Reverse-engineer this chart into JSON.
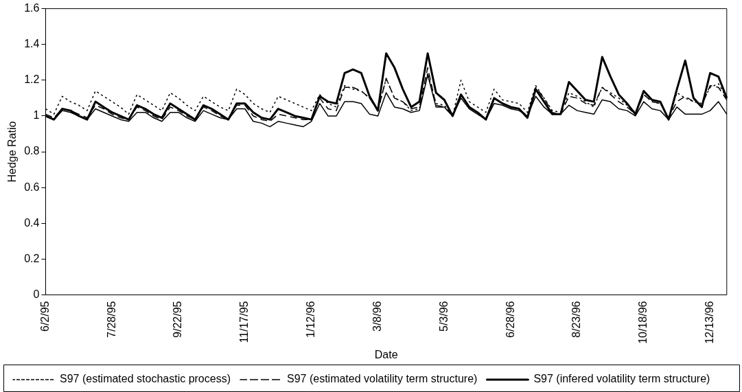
{
  "chart_data": {
    "type": "line",
    "xlabel": "Date",
    "ylabel": "Hedge Ratio",
    "ylim": [
      0,
      1.6
    ],
    "yticks": [
      0,
      0.2,
      0.4,
      0.6,
      0.8,
      1,
      1.2,
      1.4,
      1.6
    ],
    "grid": false,
    "legend": "bottom",
    "marker": "none",
    "categories": [
      "6/2/95",
      null,
      null,
      null,
      null,
      null,
      null,
      null,
      "7/28/95",
      null,
      null,
      null,
      null,
      null,
      null,
      null,
      "9/22/95",
      null,
      null,
      null,
      null,
      null,
      null,
      null,
      "11/17/95",
      null,
      null,
      null,
      null,
      null,
      null,
      null,
      "1/12/96",
      null,
      null,
      null,
      null,
      null,
      null,
      null,
      "3/8/96",
      null,
      null,
      null,
      null,
      null,
      null,
      null,
      "5/3/96",
      null,
      null,
      null,
      null,
      null,
      null,
      null,
      "6/28/96",
      null,
      null,
      null,
      null,
      null,
      null,
      null,
      "8/23/96",
      null,
      null,
      null,
      null,
      null,
      null,
      null,
      "10/18/96",
      null,
      null,
      null,
      null,
      null,
      null,
      null,
      "12/13/96",
      null,
      null
    ],
    "series": [
      {
        "name": "S97 (estimated stochastic process)",
        "color": "#000000",
        "line_style": "dotted",
        "values": [
          1.04,
          1.01,
          1.11,
          1.08,
          1.06,
          1.03,
          1.14,
          1.11,
          1.08,
          1.05,
          1.01,
          1.12,
          1.09,
          1.06,
          1.03,
          1.13,
          1.1,
          1.06,
          1.03,
          1.11,
          1.08,
          1.05,
          1.03,
          1.15,
          1.12,
          1.07,
          1.04,
          1.02,
          1.11,
          1.09,
          1.07,
          1.05,
          1.03,
          1.12,
          1.07,
          1.05,
          1.17,
          1.15,
          1.14,
          1.1,
          1.03,
          1.21,
          1.1,
          1.08,
          1.03,
          1.04,
          1.24,
          1.07,
          1.06,
          1.0,
          1.2,
          1.08,
          1.05,
          1.02,
          1.15,
          1.09,
          1.08,
          1.07,
          1.02,
          1.17,
          1.1,
          1.03,
          1.02,
          1.13,
          1.11,
          1.08,
          1.05,
          1.16,
          1.13,
          1.1,
          1.06,
          1.02,
          1.12,
          1.08,
          1.07,
          0.99,
          1.13,
          1.1,
          1.08,
          1.07,
          1.16,
          1.18,
          1.1
        ]
      },
      {
        "name": "S97 (estimated volatility term structure)",
        "color": "#000000",
        "line_style": "dashed",
        "values": [
          1.01,
          0.99,
          1.04,
          1.03,
          1.01,
          0.99,
          1.06,
          1.04,
          1.01,
          0.99,
          0.98,
          1.05,
          1.03,
          1.0,
          0.98,
          1.05,
          1.03,
          1.0,
          0.98,
          1.05,
          1.03,
          1.0,
          0.98,
          1.06,
          1.06,
          1.0,
          0.98,
          0.97,
          1.01,
          1.0,
          0.99,
          0.98,
          0.98,
          1.1,
          1.04,
          1.03,
          1.16,
          1.16,
          1.14,
          1.1,
          1.03,
          1.21,
          1.1,
          1.08,
          1.04,
          1.05,
          1.27,
          1.06,
          1.05,
          1.0,
          1.12,
          1.05,
          1.02,
          0.98,
          1.1,
          1.07,
          1.05,
          1.04,
          1.0,
          1.16,
          1.1,
          1.02,
          1.01,
          1.11,
          1.1,
          1.07,
          1.06,
          1.16,
          1.12,
          1.08,
          1.05,
          1.01,
          1.12,
          1.08,
          1.07,
          0.99,
          1.08,
          1.11,
          1.08,
          1.06,
          1.17,
          1.16,
          1.09
        ]
      },
      {
        "name": "S97 (infered volatility term structure)",
        "color": "#000000",
        "line_style": "solid",
        "values": [
          1.0,
          0.98,
          1.04,
          1.03,
          1.0,
          0.98,
          1.08,
          1.05,
          1.02,
          1.0,
          0.98,
          1.06,
          1.04,
          1.01,
          0.99,
          1.07,
          1.04,
          1.01,
          0.98,
          1.06,
          1.04,
          1.01,
          0.98,
          1.07,
          1.07,
          1.02,
          0.99,
          0.98,
          1.04,
          1.02,
          1.0,
          0.99,
          0.98,
          1.11,
          1.08,
          1.07,
          1.24,
          1.26,
          1.24,
          1.11,
          1.03,
          1.35,
          1.27,
          1.15,
          1.05,
          1.08,
          1.35,
          1.13,
          1.09,
          1.0,
          1.12,
          1.05,
          1.02,
          0.98,
          1.1,
          1.07,
          1.05,
          1.04,
          0.99,
          1.15,
          1.08,
          1.01,
          1.01,
          1.19,
          1.14,
          1.09,
          1.08,
          1.33,
          1.22,
          1.12,
          1.07,
          1.01,
          1.14,
          1.09,
          1.08,
          0.98,
          1.15,
          1.31,
          1.1,
          1.05,
          1.24,
          1.22,
          1.1
        ]
      },
      {
        "color": "#000000",
        "line_style": "solid",
        "values": [
          1.0,
          0.98,
          1.03,
          1.02,
          1.0,
          0.98,
          1.04,
          1.02,
          1.0,
          0.98,
          0.97,
          1.02,
          1.02,
          0.99,
          0.97,
          1.02,
          1.02,
          0.99,
          0.97,
          1.03,
          1.01,
          0.99,
          0.98,
          1.04,
          1.04,
          0.97,
          0.96,
          0.94,
          0.97,
          0.96,
          0.95,
          0.94,
          0.97,
          1.07,
          1.0,
          1.0,
          1.08,
          1.08,
          1.07,
          1.01,
          1.0,
          1.13,
          1.05,
          1.04,
          1.02,
          1.03,
          1.23,
          1.05,
          1.05,
          1.0,
          1.1,
          1.04,
          1.01,
          0.98,
          1.07,
          1.06,
          1.04,
          1.03,
          1.0,
          1.11,
          1.05,
          1.01,
          1.01,
          1.06,
          1.03,
          1.02,
          1.01,
          1.09,
          1.08,
          1.04,
          1.03,
          1.0,
          1.08,
          1.04,
          1.03,
          0.98,
          1.05,
          1.01,
          1.01,
          1.01,
          1.03,
          1.08,
          1.01
        ]
      }
    ]
  }
}
